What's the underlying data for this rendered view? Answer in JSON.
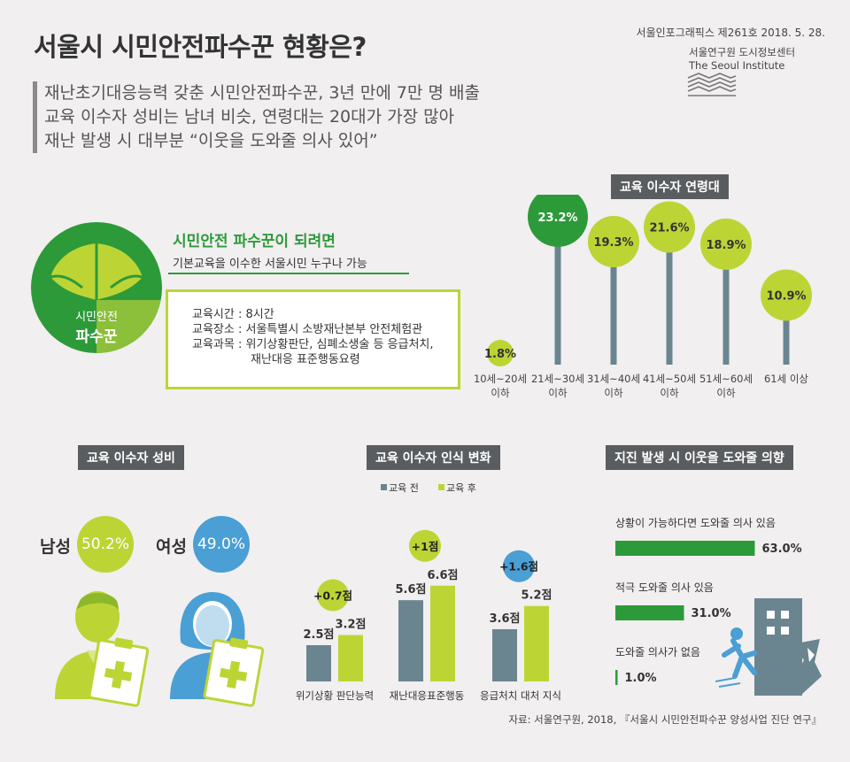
{
  "header": {
    "title": "서울시 시민안전파수꾼 현황은?",
    "publication": "서울인포그래픽스 제261호 2018. 5. 28.",
    "org_korean": "서울연구원 도시정보센터",
    "org_english": "The Seoul Institute"
  },
  "summary": [
    "재난초기대응능력 갖춘 시민안전파수꾼, 3년 만에 7만 명 배출",
    "교육 이수자 성비는 남녀 비슷, 연령대는 20대가 가장 많아",
    "재난 발생 시 대부분 “이웃을 도와줄 의사 있어”"
  ],
  "logo": {
    "line1": "시민안전",
    "line2": "파수꾼"
  },
  "requirement": {
    "heading": "시민안전 파수꾼이 되려면",
    "subheading": "기본교육을 이수한 서울시민 누구나 가능",
    "rows": [
      {
        "label": "교육시간 : ",
        "value": "8시간"
      },
      {
        "label": "교육장소 : ",
        "value": "서울특별시 소방재난본부 안전체험관"
      },
      {
        "label": "교육과목 : ",
        "value": "위기상황판단, 심폐소생술 등 응급처치,"
      },
      {
        "label": "",
        "value": "재난대응 표준행동요령"
      }
    ]
  },
  "colors": {
    "green_dark": "#2d9a3a",
    "lime": "#bcd535",
    "slate": "#6b8590",
    "blue": "#4a9fd4",
    "gray_head": "#5a5d60"
  },
  "chart_data": [
    {
      "type": "bar",
      "title": "교육 이수자 연령대",
      "categories": [
        [
          "10세~20세",
          "이하"
        ],
        [
          "21세~30세",
          "이하"
        ],
        [
          "31세~40세",
          "이하"
        ],
        [
          "41세~50세",
          "이하"
        ],
        [
          "51세~60세",
          "이하"
        ],
        [
          "61세 이상",
          ""
        ]
      ],
      "values": [
        1.8,
        23.2,
        19.3,
        21.6,
        18.9,
        10.9
      ],
      "value_labels": [
        "1.8%",
        "23.2%",
        "19.3%",
        "21.6%",
        "18.9%",
        "10.9%"
      ],
      "highlight_index": 1
    },
    {
      "type": "table",
      "title": "교육 이수자 성비",
      "rows": [
        {
          "label": "남성",
          "value": "50.2%",
          "color": "#bcd535"
        },
        {
          "label": "여성",
          "value": "49.0%",
          "color": "#4a9fd4"
        }
      ]
    },
    {
      "type": "bar",
      "title": "교육 이수자 인식 변화",
      "legend": [
        "교육 전",
        "교육 후"
      ],
      "categories": [
        "위기상황 판단능력",
        "재난대응표준행동",
        "응급처치 대처 지식"
      ],
      "series": [
        {
          "name": "교육 전",
          "values": [
            2.5,
            5.6,
            3.6
          ],
          "labels": [
            "2.5점",
            "5.6점",
            "3.6점"
          ],
          "color": "#6b8590"
        },
        {
          "name": "교육 후",
          "values": [
            3.2,
            6.6,
            5.2
          ],
          "labels": [
            "3.2점",
            "6.6점",
            "5.2점"
          ],
          "color": "#bcd535"
        }
      ],
      "changes": [
        {
          "label": "+0.7점",
          "color": "#bcd535"
        },
        {
          "label": "+1점",
          "color": "#bcd535"
        },
        {
          "label": "+1.6점",
          "color": "#4a9fd4"
        }
      ]
    },
    {
      "type": "bar",
      "title": "지진 발생 시 이웃을 도와줄 의향",
      "categories": [
        "상황이 가능하다면 도와줄 의사 있음",
        "적극 도와줄 의사 있음",
        "도와줄 의사가 없음"
      ],
      "values": [
        63.0,
        31.0,
        1.0
      ],
      "value_labels": [
        "63.0%",
        "31.0%",
        "1.0%"
      ]
    }
  ],
  "source": "자료:  서울연구원, 2018, 『서울시 시민안전파수꾼 양성사업 진단 연구』"
}
